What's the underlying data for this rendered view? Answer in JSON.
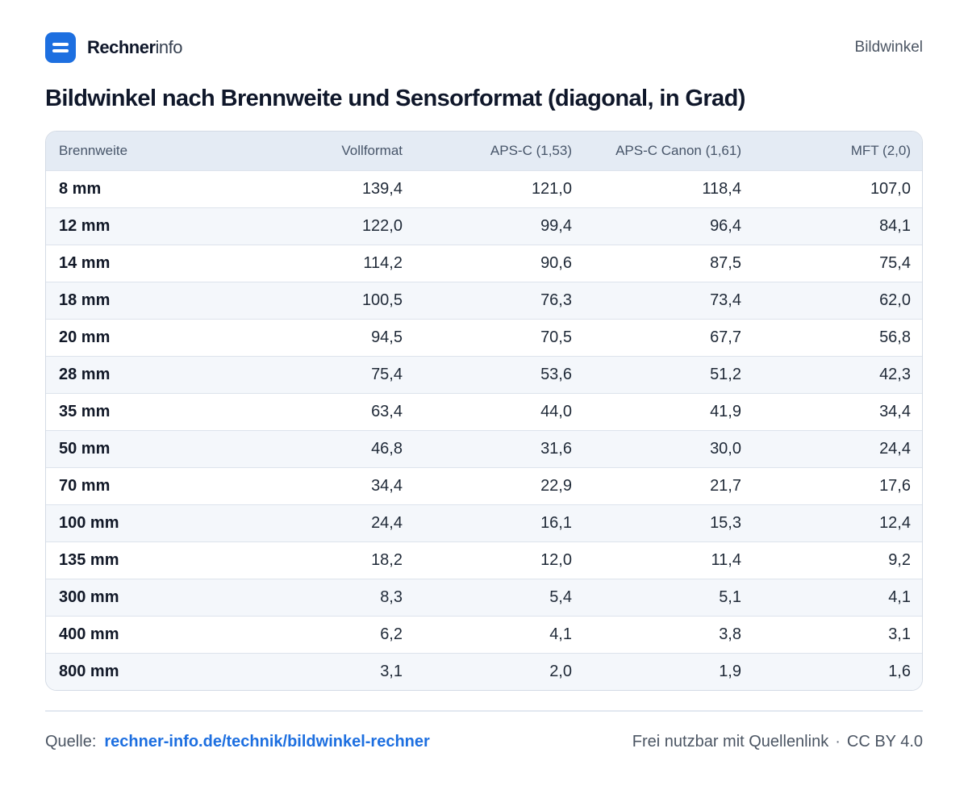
{
  "header": {
    "brand_bold": "Rechner",
    "brand_light": "info",
    "page_label": "Bildwinkel"
  },
  "title": "Bildwinkel nach Brennweite und Sensorformat (diagonal, in Grad)",
  "table": {
    "columns": [
      "Brennweite",
      "Vollformat",
      "APS-C (1,53)",
      "APS-C Canon (1,61)",
      "MFT (2,0)"
    ],
    "rows": [
      [
        "8 mm",
        "139,4",
        "121,0",
        "118,4",
        "107,0"
      ],
      [
        "12 mm",
        "122,0",
        "99,4",
        "96,4",
        "84,1"
      ],
      [
        "14 mm",
        "114,2",
        "90,6",
        "87,5",
        "75,4"
      ],
      [
        "18 mm",
        "100,5",
        "76,3",
        "73,4",
        "62,0"
      ],
      [
        "20 mm",
        "94,5",
        "70,5",
        "67,7",
        "56,8"
      ],
      [
        "28 mm",
        "75,4",
        "53,6",
        "51,2",
        "42,3"
      ],
      [
        "35 mm",
        "63,4",
        "44,0",
        "41,9",
        "34,4"
      ],
      [
        "50 mm",
        "46,8",
        "31,6",
        "30,0",
        "24,4"
      ],
      [
        "70 mm",
        "34,4",
        "22,9",
        "21,7",
        "17,6"
      ],
      [
        "100 mm",
        "24,4",
        "16,1",
        "15,3",
        "12,4"
      ],
      [
        "135 mm",
        "18,2",
        "12,0",
        "11,4",
        "9,2"
      ],
      [
        "300 mm",
        "8,3",
        "5,4",
        "5,1",
        "4,1"
      ],
      [
        "400 mm",
        "6,2",
        "4,1",
        "3,8",
        "3,1"
      ],
      [
        "800 mm",
        "3,1",
        "2,0",
        "1,9",
        "1,6"
      ]
    ]
  },
  "footer": {
    "source_label": "Quelle:",
    "source_link": "rechner-info.de/technik/bildwinkel-rechner",
    "license_text": "Frei nutzbar mit Quellenlink",
    "separator": "·",
    "license_name": "CC BY 4.0"
  },
  "colors": {
    "accent": "#1d6fe0",
    "header_row": "#e4ebf4",
    "zebra_row": "#f4f7fb"
  }
}
